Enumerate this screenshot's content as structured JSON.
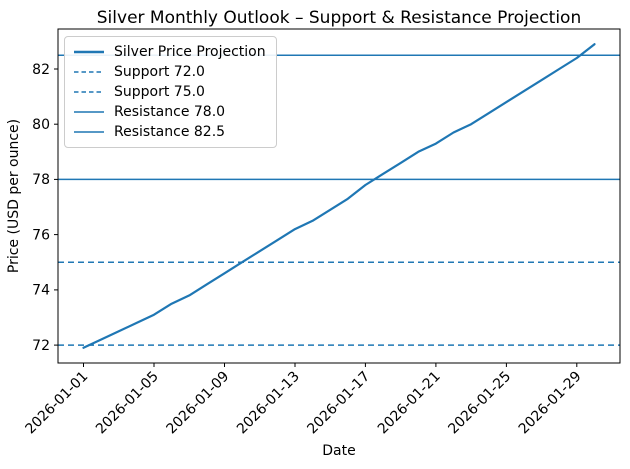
{
  "figure": {
    "title": "Silver Monthly Outlook – Support & Resistance Projection",
    "xlabel": "Date",
    "ylabel": "Price (USD per ounce)"
  },
  "legend": {
    "items": [
      {
        "label": "Silver Price Projection",
        "style": "solid-thick"
      },
      {
        "label": "Support 72.0",
        "style": "dashed"
      },
      {
        "label": "Support 75.0",
        "style": "dashed"
      },
      {
        "label": "Resistance 78.0",
        "style": "solid"
      },
      {
        "label": "Resistance 82.5",
        "style": "solid"
      }
    ]
  },
  "chart_data": {
    "type": "line",
    "title": "Silver Monthly Outlook – Support & Resistance Projection",
    "xlabel": "Date",
    "ylabel": "Price (USD per ounce)",
    "grid": false,
    "legend_position": "upper left",
    "line_color": "#1f77b4",
    "xlim_days": [
      -1.45,
      30.45
    ],
    "ylim": [
      71.35,
      83.45
    ],
    "yticks": [
      72,
      74,
      76,
      78,
      80,
      82
    ],
    "xticks": [
      "2026-01-01",
      "2026-01-05",
      "2026-01-09",
      "2026-01-13",
      "2026-01-17",
      "2026-01-21",
      "2026-01-25",
      "2026-01-29"
    ],
    "x": [
      "2026-01-01",
      "2026-01-02",
      "2026-01-03",
      "2026-01-04",
      "2026-01-05",
      "2026-01-06",
      "2026-01-07",
      "2026-01-08",
      "2026-01-09",
      "2026-01-10",
      "2026-01-11",
      "2026-01-12",
      "2026-01-13",
      "2026-01-14",
      "2026-01-15",
      "2026-01-16",
      "2026-01-17",
      "2026-01-18",
      "2026-01-19",
      "2026-01-20",
      "2026-01-21",
      "2026-01-22",
      "2026-01-23",
      "2026-01-24",
      "2026-01-25",
      "2026-01-26",
      "2026-01-27",
      "2026-01-28",
      "2026-01-29",
      "2026-01-30"
    ],
    "series": [
      {
        "name": "Silver Price Projection",
        "values": [
          71.9,
          72.2,
          72.5,
          72.8,
          73.1,
          73.5,
          73.8,
          74.2,
          74.6,
          75.0,
          75.4,
          75.8,
          76.2,
          76.5,
          76.9,
          77.3,
          77.8,
          78.2,
          78.6,
          79.0,
          79.3,
          79.7,
          80.0,
          80.4,
          80.8,
          81.2,
          81.6,
          82.0,
          82.4,
          82.9
        ]
      }
    ],
    "hlines": [
      {
        "label": "Support 72.0",
        "y": 72.0,
        "style": "dashed"
      },
      {
        "label": "Support 75.0",
        "y": 75.0,
        "style": "dashed"
      },
      {
        "label": "Resistance 78.0",
        "y": 78.0,
        "style": "solid"
      },
      {
        "label": "Resistance 82.5",
        "y": 82.5,
        "style": "solid"
      }
    ]
  }
}
